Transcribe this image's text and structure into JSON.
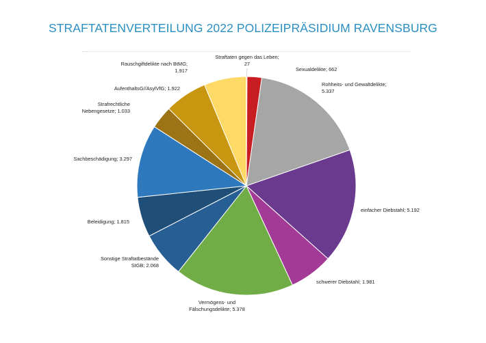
{
  "chart_data": {
    "type": "pie",
    "title": "STRAFTATENVERTEILUNG 2022 POLIZEIPRÄSIDIUM RAVENSBURG",
    "slices": [
      {
        "name": "Straftaten gegen das Leben",
        "value": 27,
        "display": "27",
        "color": "#e8312e",
        "label_lines": [
          "Straftaten gegen das Leben;",
          "27"
        ],
        "anchor": "middle"
      },
      {
        "name": "Sexualdelikte",
        "value": 662,
        "display": "662",
        "color": "#c81e23",
        "label_lines": [
          "Sexualdelikte; 662"
        ],
        "anchor": "start"
      },
      {
        "name": "Rohheits- und Gewaltdelikte",
        "value": 5337,
        "display": "5.337",
        "color": "#a6a6a6",
        "label_lines": [
          "Rohheits- und Gewaltdelikte;",
          "5.337"
        ],
        "anchor": "start"
      },
      {
        "name": "einfacher Diebstahl",
        "value": 5192,
        "display": "5.192",
        "color": "#6a3a8f",
        "label_lines": [
          "einfacher Diebstahl; 5.192"
        ],
        "anchor": "start"
      },
      {
        "name": "schwerer Diebstahl",
        "value": 1981,
        "display": "1.981",
        "color": "#a33b96",
        "label_lines": [
          "schwerer Diebstahl; 1.981"
        ],
        "anchor": "start"
      },
      {
        "name": "Vermögens- und Fälschungsdelikte",
        "value": 5378,
        "display": "5.378",
        "color": "#71ad47",
        "label_lines": [
          "Vermögens- und",
          "Fälschungsdelikte; 5.378"
        ],
        "anchor": "middle"
      },
      {
        "name": "Sonstige Straftatbestände StGB",
        "value": 2068,
        "display": "2.068",
        "color": "#275f95",
        "label_lines": [
          "Sonstige Straftatbestände",
          "StGB; 2.068"
        ],
        "anchor": "end"
      },
      {
        "name": "Beleidigung",
        "value": 1815,
        "display": "1.815",
        "color": "#1f4e79",
        "label_lines": [
          "Beleidigung; 1.815"
        ],
        "anchor": "end"
      },
      {
        "name": "Sachbeschädigung",
        "value": 3297,
        "display": "3.297",
        "color": "#2e79be",
        "label_lines": [
          "Sachbeschädigung; 3.297"
        ],
        "anchor": "end"
      },
      {
        "name": "Strafrechtliche Nebengesetze",
        "value": 1033,
        "display": "1.033",
        "color": "#9c7416",
        "label_lines": [
          "Strafrechtliche",
          "Nebengesetze; 1.033"
        ],
        "anchor": "end"
      },
      {
        "name": "AufenthaltsG//AsylVfG",
        "value": 1922,
        "display": "1.922",
        "color": "#c8960f",
        "label_lines": [
          "AufenthaltsG//AsylVfG; 1.922"
        ],
        "anchor": "end"
      },
      {
        "name": "Rauschgiftdelikte nach BtMG",
        "value": 1917,
        "display": "1.917",
        "color": "#ffd966",
        "label_lines": [
          "Rauschgiftdelikte nach BtMG;",
          "1.917"
        ],
        "anchor": "end"
      }
    ],
    "start_angle": "12 o'clock",
    "direction": "clockwise",
    "legend": "none",
    "label_style": "outside, name and value"
  }
}
